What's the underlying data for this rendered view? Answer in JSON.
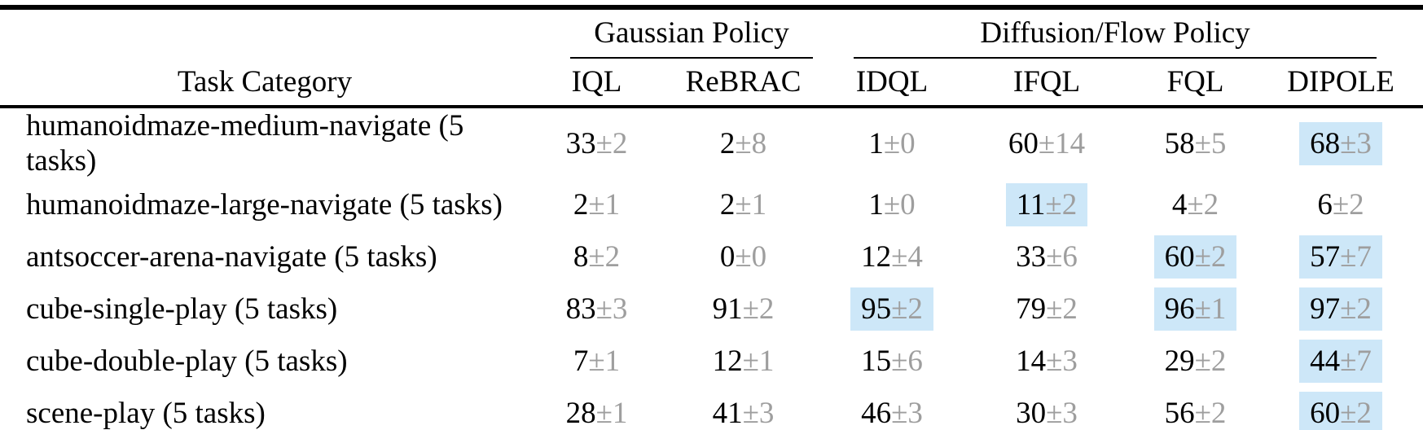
{
  "table": {
    "row_header_label": "Task Category",
    "groups": [
      {
        "label": "Gaussian Policy"
      },
      {
        "label": "Diffusion/Flow Policy"
      }
    ],
    "columns": [
      "IQL",
      "ReBRAC",
      "IDQL",
      "IFQL",
      "FQL",
      "DIPOLE"
    ],
    "rows": [
      {
        "task": "humanoidmaze-medium-navigate (5 tasks)",
        "cells": [
          {
            "v": "33",
            "e": "±2",
            "hl": false
          },
          {
            "v": "2",
            "e": "±8",
            "hl": false
          },
          {
            "v": "1",
            "e": "±0",
            "hl": false
          },
          {
            "v": "60",
            "e": "±14",
            "hl": false
          },
          {
            "v": "58",
            "e": "±5",
            "hl": false
          },
          {
            "v": "68",
            "e": "±3",
            "hl": true
          }
        ]
      },
      {
        "task": "humanoidmaze-large-navigate (5 tasks)",
        "cells": [
          {
            "v": "2",
            "e": "±1",
            "hl": false
          },
          {
            "v": "2",
            "e": "±1",
            "hl": false
          },
          {
            "v": "1",
            "e": "±0",
            "hl": false
          },
          {
            "v": "11",
            "e": "±2",
            "hl": true
          },
          {
            "v": "4",
            "e": "±2",
            "hl": false
          },
          {
            "v": "6",
            "e": "±2",
            "hl": false
          }
        ]
      },
      {
        "task": "antsoccer-arena-navigate (5 tasks)",
        "cells": [
          {
            "v": "8",
            "e": "±2",
            "hl": false
          },
          {
            "v": "0",
            "e": "±0",
            "hl": false
          },
          {
            "v": "12",
            "e": "±4",
            "hl": false
          },
          {
            "v": "33",
            "e": "±6",
            "hl": false
          },
          {
            "v": "60",
            "e": "±2",
            "hl": true
          },
          {
            "v": "57",
            "e": "±7",
            "hl": true
          }
        ]
      },
      {
        "task": "cube-single-play (5 tasks)",
        "cells": [
          {
            "v": "83",
            "e": "±3",
            "hl": false
          },
          {
            "v": "91",
            "e": "±2",
            "hl": false
          },
          {
            "v": "95",
            "e": "±2",
            "hl": true
          },
          {
            "v": "79",
            "e": "±2",
            "hl": false
          },
          {
            "v": "96",
            "e": "±1",
            "hl": true
          },
          {
            "v": "97",
            "e": "±2",
            "hl": true
          }
        ]
      },
      {
        "task": "cube-double-play (5 tasks)",
        "cells": [
          {
            "v": "7",
            "e": "±1",
            "hl": false
          },
          {
            "v": "12",
            "e": "±1",
            "hl": false
          },
          {
            "v": "15",
            "e": "±6",
            "hl": false
          },
          {
            "v": "14",
            "e": "±3",
            "hl": false
          },
          {
            "v": "29",
            "e": "±2",
            "hl": false
          },
          {
            "v": "44",
            "e": "±7",
            "hl": true
          }
        ]
      },
      {
        "task": "scene-play (5 tasks)",
        "cells": [
          {
            "v": "28",
            "e": "±1",
            "hl": false
          },
          {
            "v": "41",
            "e": "±3",
            "hl": false
          },
          {
            "v": "46",
            "e": "±3",
            "hl": false
          },
          {
            "v": "30",
            "e": "±3",
            "hl": false
          },
          {
            "v": "56",
            "e": "±2",
            "hl": false
          },
          {
            "v": "60",
            "e": "±2",
            "hl": true
          }
        ]
      }
    ],
    "colors": {
      "highlight": "#cde7f8",
      "error_text": "#9e9e9e",
      "text": "#000000",
      "rule": "#000000"
    }
  }
}
